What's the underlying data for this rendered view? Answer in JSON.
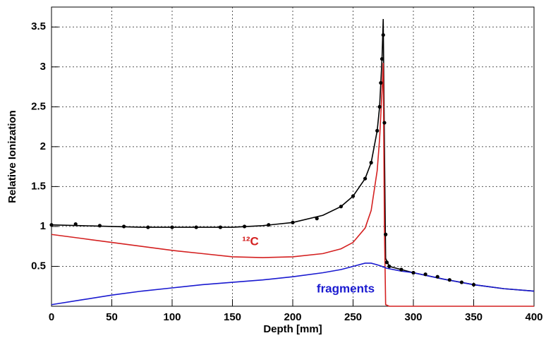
{
  "chart_data": {
    "type": "line",
    "x_label": "Depth [mm]",
    "y_label": "Relative Ionization",
    "xlim": [
      0,
      400
    ],
    "xticks": [
      0,
      50,
      100,
      150,
      200,
      250,
      300,
      350,
      400
    ],
    "ylim": [
      0,
      3.75
    ],
    "yticks": [
      0.5,
      1,
      1.5,
      2,
      2.5,
      3,
      3.5
    ],
    "grid": true,
    "x": [
      0,
      25,
      50,
      75,
      100,
      125,
      150,
      175,
      200,
      225,
      240,
      250,
      260,
      265,
      270,
      272,
      274,
      275,
      276,
      277,
      280,
      290,
      300,
      325,
      350,
      375,
      400
    ],
    "series": [
      {
        "color": "#000000",
        "style": "line",
        "values": [
          1.02,
          1.01,
          1.0,
          0.99,
          0.99,
          0.99,
          0.99,
          1.01,
          1.05,
          1.14,
          1.25,
          1.38,
          1.6,
          1.8,
          2.2,
          2.5,
          3.1,
          3.6,
          2.0,
          0.6,
          0.5,
          0.46,
          0.42,
          0.34,
          0.27,
          0.22,
          0.19
        ]
      },
      {
        "name": "¹²C",
        "color": "#d42020",
        "style": "line",
        "values": [
          0.9,
          0.85,
          0.8,
          0.75,
          0.7,
          0.66,
          0.62,
          0.61,
          0.62,
          0.66,
          0.72,
          0.8,
          0.98,
          1.2,
          1.7,
          2.1,
          2.7,
          3.05,
          1.0,
          0.02,
          0,
          0,
          0,
          0,
          0,
          0,
          0
        ]
      },
      {
        "name": "fragments",
        "color": "#1a1ad0",
        "style": "line",
        "values": [
          0.02,
          0.08,
          0.14,
          0.19,
          0.23,
          0.27,
          0.3,
          0.33,
          0.37,
          0.42,
          0.46,
          0.5,
          0.54,
          0.54,
          0.52,
          0.51,
          0.5,
          0.49,
          0.49,
          0.48,
          0.47,
          0.44,
          0.42,
          0.34,
          0.27,
          0.22,
          0.19
        ]
      },
      {
        "color": "#000000",
        "style": "points",
        "x": [
          0,
          20,
          40,
          60,
          80,
          100,
          120,
          140,
          160,
          180,
          200,
          220,
          240,
          250,
          260,
          265,
          270,
          272,
          273,
          274,
          275,
          276,
          277,
          278,
          280,
          290,
          300,
          310,
          320,
          330,
          340,
          350
        ],
        "values": [
          1.02,
          1.03,
          1.01,
          1.0,
          0.99,
          0.99,
          0.99,
          0.99,
          1.0,
          1.02,
          1.05,
          1.1,
          1.25,
          1.38,
          1.6,
          1.8,
          2.2,
          2.5,
          2.8,
          3.1,
          3.4,
          2.3,
          0.9,
          0.55,
          0.5,
          0.46,
          0.42,
          0.4,
          0.37,
          0.33,
          0.3,
          0.27
        ]
      }
    ]
  }
}
